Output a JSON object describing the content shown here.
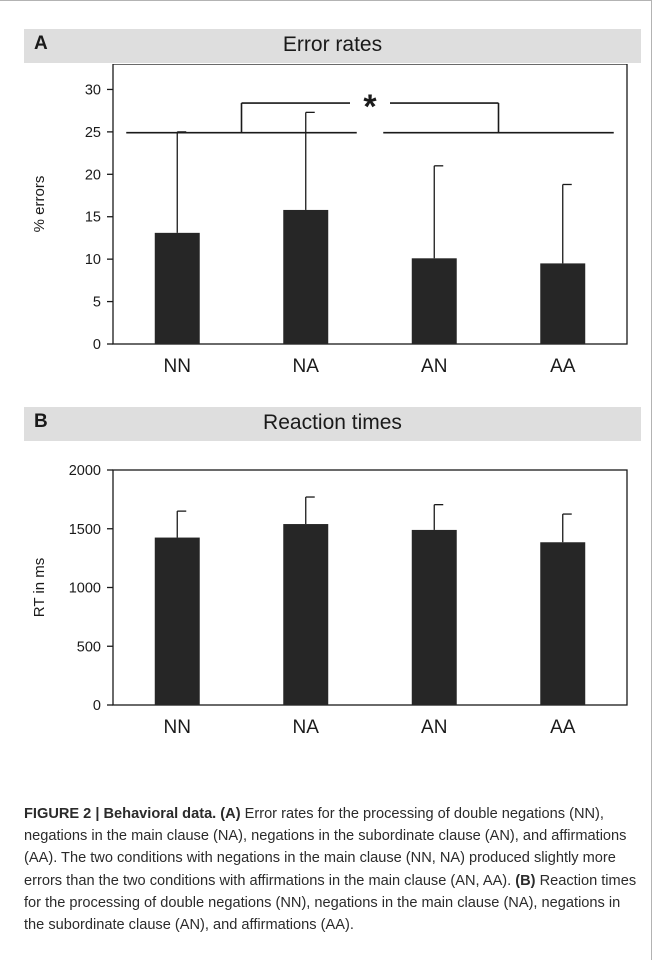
{
  "panels": {
    "a": {
      "letter": "A",
      "title": "Error rates"
    },
    "b": {
      "letter": "B",
      "title": "Reaction times"
    }
  },
  "chart_data": [
    {
      "type": "bar",
      "title": "Error rates",
      "ylabel": "% errors",
      "xlabel": "",
      "categories": [
        "NN",
        "NA",
        "AN",
        "AA"
      ],
      "values": [
        13.1,
        15.8,
        10.1,
        9.5
      ],
      "error": [
        11.9,
        11.5,
        10.9,
        9.3
      ],
      "ylim": [
        0,
        33
      ],
      "yticks": [
        0,
        5,
        10,
        15,
        20,
        25,
        30
      ],
      "bar_color": "#262626",
      "significance": {
        "marker": "*",
        "left_group": [
          "NN",
          "NA"
        ],
        "right_group": [
          "AN",
          "AA"
        ]
      }
    },
    {
      "type": "bar",
      "title": "Reaction times",
      "ylabel": "RT in ms",
      "xlabel": "",
      "categories": [
        "NN",
        "NA",
        "AN",
        "AA"
      ],
      "values": [
        1425,
        1540,
        1490,
        1385
      ],
      "error": [
        225,
        230,
        215,
        240
      ],
      "ylim": [
        0,
        2000
      ],
      "yticks": [
        0,
        500,
        1000,
        1500,
        2000
      ],
      "bar_color": "#262626"
    }
  ],
  "caption": {
    "label": "FIGURE 2 | Behavioral data.",
    "part_a_label": "(A)",
    "part_a_text": " Error rates for the processing of double negations (NN), negations in the main clause (NA), negations in the subordinate clause (AN), and affirmations (AA). The two conditions with negations in the main clause (NN, NA) produced slightly more errors than the two conditions with affirmations in the main clause (AN, AA). ",
    "part_b_label": "(B)",
    "part_b_text": " Reaction times for the processing of double negations (NN), negations in the main clause (NA), negations in the subordinate clause (AN), and affirmations (AA)."
  }
}
